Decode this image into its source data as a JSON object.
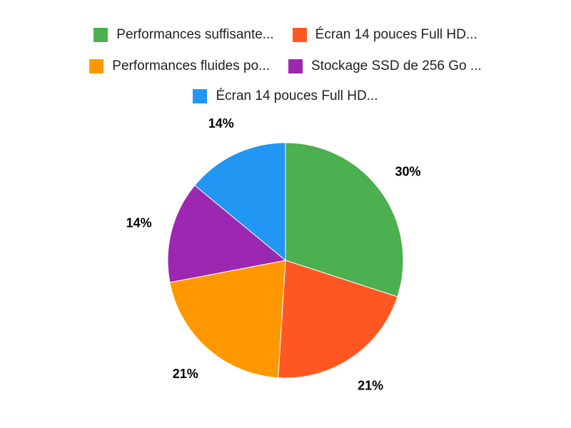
{
  "chart_data": {
    "type": "pie",
    "legend_position": "top",
    "start_angle": "12 o'clock, clockwise",
    "slices": [
      {
        "label": "Performances suffisante...",
        "value": 30,
        "display": "30%",
        "color": "#4CAF50"
      },
      {
        "label": "Écran 14 pouces Full HD...",
        "value": 21,
        "display": "21%",
        "color": "#FF5722"
      },
      {
        "label": "Performances fluides po...",
        "value": 21,
        "display": "21%",
        "color": "#FF9800"
      },
      {
        "label": "Stockage SSD de 256 Go ...",
        "value": 14,
        "display": "14%",
        "color": "#9C27B0"
      },
      {
        "label": "Écran 14 pouces Full HD...",
        "value": 14,
        "display": "14%",
        "color": "#2196F3"
      }
    ]
  }
}
